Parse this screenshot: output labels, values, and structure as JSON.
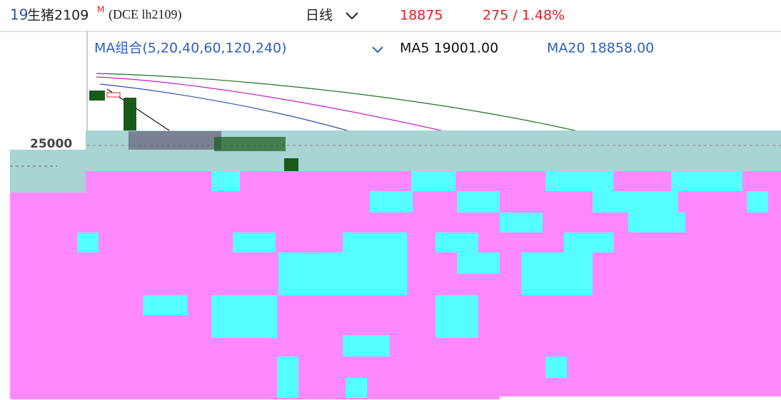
{
  "header": {
    "code": "19",
    "name": "生猪2109",
    "superscript": "M",
    "contract": "(DCE lh2109)",
    "period": "日线",
    "price": "18875",
    "change": "275 / 1.48%"
  },
  "indicator": {
    "label": "MA组合(5,20,40,60,120,240)",
    "ma5": "MA5 19001.00",
    "ma20": "MA20 18858.00"
  },
  "axis": {
    "tick": "25000"
  }
}
